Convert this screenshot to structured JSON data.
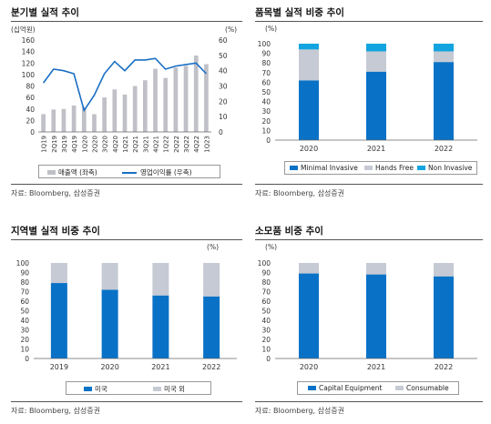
{
  "panels": [
    {
      "title": "분기별 실적 추이",
      "source": "자료: Bloomberg, 삼성증권",
      "legend": [
        "매출액 (좌축)",
        "영업이익률 (우축)"
      ]
    },
    {
      "title": "품목별 실적 비중 추이",
      "source": "자료: Bloomberg, 삼성증권",
      "legend": [
        "Minimal Invasive",
        "Hands Free",
        "Non Invasive"
      ]
    },
    {
      "title": "지역별 실적 비중 추이",
      "source": "자료: Bloomberg, 삼성증권",
      "legend": [
        "미국",
        "미국 외"
      ]
    },
    {
      "title": "소모품 비중 추이",
      "source": "자료: Bloomberg, 삼성증권",
      "legend": [
        "Capital Equipment",
        "Consumable"
      ]
    }
  ],
  "chart_data": [
    {
      "type": "bar",
      "title": "분기별 실적 추이",
      "ylabel": "(십억원)",
      "y2label": "(%)",
      "ylim": [
        0,
        160
      ],
      "y2lim": [
        0,
        60
      ],
      "yticks": [
        0,
        20,
        40,
        60,
        80,
        100,
        120,
        140,
        160
      ],
      "y2ticks": [
        0,
        10,
        20,
        30,
        40,
        50,
        60
      ],
      "categories": [
        "1Q19",
        "2Q19",
        "3Q19",
        "4Q19",
        "1Q20",
        "2Q20",
        "3Q20",
        "4Q20",
        "1Q21",
        "2Q21",
        "3Q21",
        "4Q21",
        "1Q22",
        "2Q22",
        "3Q22",
        "4Q22",
        "1Q23"
      ],
      "series": [
        {
          "name": "매출액 (좌축)",
          "type": "bar",
          "axis": "left",
          "color": "#c0c0c8",
          "values": [
            31,
            39,
            40,
            46,
            43,
            31,
            60,
            74,
            65,
            80,
            90,
            110,
            94,
            112,
            115,
            133,
            118
          ]
        },
        {
          "name": "영업이익률 (우축)",
          "type": "line",
          "axis": "right",
          "color": "#1a6fc4",
          "values": [
            32,
            41,
            40,
            38,
            14,
            24,
            38,
            46,
            40,
            47,
            47,
            48,
            41,
            43,
            44,
            45,
            38
          ]
        }
      ],
      "legend_position": "bottom"
    },
    {
      "type": "bar",
      "stacked": true,
      "title": "품목별 실적 비중 추이",
      "y2label": "(%)",
      "ylim": [
        0,
        100
      ],
      "yticks": [
        0,
        10,
        20,
        30,
        40,
        50,
        60,
        70,
        80,
        90,
        100
      ],
      "categories": [
        "2020",
        "2021",
        "2022"
      ],
      "series": [
        {
          "name": "Minimal Invasive",
          "color": "#0a72c6",
          "values": [
            62,
            71,
            81
          ]
        },
        {
          "name": "Hands Free",
          "color": "#c6cad4",
          "values": [
            32,
            21,
            11
          ]
        },
        {
          "name": "Non Invasive",
          "color": "#12a4e0",
          "values": [
            6,
            8,
            8
          ]
        }
      ],
      "legend_position": "bottom"
    },
    {
      "type": "bar",
      "stacked": true,
      "title": "지역별 실적 비중 추이",
      "y2label": "(%)",
      "ylim": [
        0,
        100
      ],
      "yticks": [
        0,
        10,
        20,
        30,
        40,
        50,
        60,
        70,
        80,
        90,
        100
      ],
      "categories": [
        "2019",
        "2020",
        "2021",
        "2022"
      ],
      "series": [
        {
          "name": "미국",
          "color": "#0a72c6",
          "values": [
            79,
            72,
            66,
            65
          ]
        },
        {
          "name": "미국 외",
          "color": "#c6cad4",
          "values": [
            21,
            28,
            34,
            35
          ]
        }
      ],
      "legend_position": "bottom"
    },
    {
      "type": "bar",
      "stacked": true,
      "title": "소모품 비중 추이",
      "y2label": "(%)",
      "ylim": [
        0,
        100
      ],
      "yticks": [
        0,
        10,
        20,
        30,
        40,
        50,
        60,
        70,
        80,
        90,
        100
      ],
      "categories": [
        "2020",
        "2021",
        "2022"
      ],
      "series": [
        {
          "name": "Capital Equipment",
          "color": "#0a72c6",
          "values": [
            89,
            88,
            86
          ]
        },
        {
          "name": "Consumable",
          "color": "#c6cad4",
          "values": [
            11,
            12,
            14
          ]
        }
      ],
      "legend_position": "bottom"
    }
  ]
}
